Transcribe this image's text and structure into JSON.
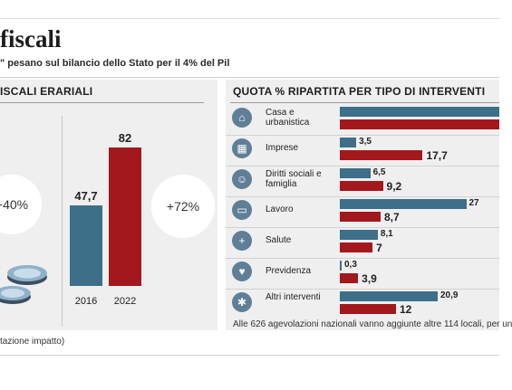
{
  "header": {
    "title": "fiscali",
    "subtitle": "\" pesano sul bilancio dello Stato per il 4% del Pil"
  },
  "left_panel": {
    "heading": "ISCALI ERARIALI",
    "badge_left": "+40%",
    "badge_right": "+72%",
    "source": "tazione impatto)"
  },
  "right_panel": {
    "heading": "QUOTA %  RIPARTITA PER TIPO DI INTERVENTI",
    "note": "Alle 626 agevolazioni nazionali vanno aggiunte altre 114 locali, per un"
  },
  "colors": {
    "series_a": "#3d6f88",
    "series_b": "#a3181d",
    "icon": "#5f7f97"
  },
  "chart_data": [
    {
      "type": "bar",
      "categories": [
        "2016",
        "2022"
      ],
      "values": [
        47.7,
        82
      ],
      "value_labels": [
        "47,7",
        "82"
      ],
      "ylim": [
        0,
        82
      ]
    },
    {
      "type": "bar",
      "orientation": "horizontal",
      "categories": [
        {
          "label": "Casa e urbanistica",
          "icon": "house-icon"
        },
        {
          "label": "Imprese",
          "icon": "factory-icon"
        },
        {
          "label": "Diritti sociali e famiglia",
          "icon": "family-icon"
        },
        {
          "label": "Lavoro",
          "icon": "briefcase-icon"
        },
        {
          "label": "Salute",
          "icon": "first-aid-icon"
        },
        {
          "label": "Previdenza",
          "icon": "hands-icon"
        },
        {
          "label": "Altri interventi",
          "icon": "gear-icon"
        }
      ],
      "series": [
        {
          "values": [
            null,
            3.5,
            6.5,
            27,
            8.1,
            0.3,
            20.9
          ],
          "labels": [
            "",
            "3,5",
            "6,5",
            "27",
            "8,1",
            "0,3",
            "20,9"
          ]
        },
        {
          "values": [
            null,
            17.7,
            9.2,
            8.7,
            7,
            3.9,
            12
          ],
          "labels": [
            "",
            "17,7",
            "9,2",
            "8,7",
            "7",
            "3,9",
            "12"
          ]
        }
      ],
      "xlim": [
        0,
        30
      ]
    }
  ]
}
